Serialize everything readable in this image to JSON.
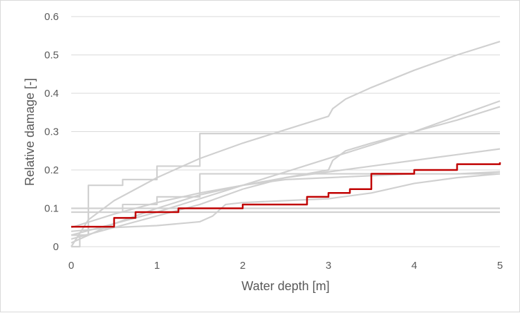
{
  "chart_data": {
    "type": "line",
    "title": "",
    "xlabel": "Water depth [m]",
    "ylabel": "Relative damage [-]",
    "xlim": [
      0,
      5
    ],
    "ylim": [
      0,
      0.6
    ],
    "xticks": [
      "0",
      "1",
      "2",
      "3",
      "4",
      "5"
    ],
    "yticks": [
      "0",
      "0.1",
      "0.2",
      "0.3",
      "0.4",
      "0.5",
      "0.6"
    ],
    "grid": "horizontal",
    "legend": "none",
    "colors": {
      "highlight": "#c00000",
      "background_series": "#d0d0d0",
      "grid": "#d9d9d9",
      "text": "#595959"
    },
    "series": [
      {
        "step": true,
        "x": [
          0,
          0.1,
          0.2,
          0.6,
          1.0,
          1.5,
          5.0
        ],
        "y": [
          0.0,
          0.03,
          0.16,
          0.175,
          0.21,
          0.295,
          0.295
        ]
      },
      {
        "step": true,
        "x": [
          0,
          0.2,
          0.6,
          1.0,
          1.5,
          5.0
        ],
        "y": [
          0.03,
          0.09,
          0.11,
          0.13,
          0.19,
          0.19
        ]
      },
      {
        "x": [
          0,
          0.2,
          0.5,
          1.0,
          1.5,
          2.0,
          2.5,
          3.0,
          3.05,
          3.2,
          3.5,
          4.0,
          4.5,
          5.0
        ],
        "y": [
          0.0,
          0.07,
          0.12,
          0.18,
          0.23,
          0.27,
          0.305,
          0.34,
          0.36,
          0.385,
          0.415,
          0.46,
          0.5,
          0.535
        ]
      },
      {
        "x": [
          0,
          0.5,
          1.0,
          1.5,
          2.0,
          2.5,
          3.0,
          3.05,
          3.2,
          3.5,
          4.0,
          4.5,
          5.0
        ],
        "y": [
          0.02,
          0.05,
          0.08,
          0.11,
          0.15,
          0.18,
          0.2,
          0.225,
          0.25,
          0.27,
          0.3,
          0.33,
          0.365
        ]
      },
      {
        "x": [
          0,
          0.5,
          1.0,
          1.5,
          2.0,
          2.5,
          3.0,
          3.5,
          4.0,
          4.5,
          5.0
        ],
        "y": [
          0.03,
          0.06,
          0.09,
          0.125,
          0.16,
          0.195,
          0.23,
          0.265,
          0.3,
          0.34,
          0.38
        ]
      },
      {
        "x": [
          0,
          0.5,
          1.0,
          1.5,
          2.0,
          2.5,
          3.0,
          3.5,
          4.0,
          4.5,
          5.0
        ],
        "y": [
          0.05,
          0.085,
          0.115,
          0.14,
          0.16,
          0.18,
          0.195,
          0.21,
          0.225,
          0.24,
          0.255
        ]
      },
      {
        "x": [
          0,
          0.5,
          1.0,
          1.5,
          1.65,
          1.8,
          2.0,
          2.5,
          3.0,
          3.5,
          4.0,
          4.5,
          5.0
        ],
        "y": [
          0.04,
          0.05,
          0.055,
          0.065,
          0.08,
          0.11,
          0.115,
          0.12,
          0.125,
          0.14,
          0.165,
          0.18,
          0.19
        ]
      },
      {
        "x": [
          0,
          0.5,
          1.0,
          1.5,
          2.0,
          2.5,
          3.0,
          3.5,
          4.0,
          4.5,
          5.0
        ],
        "y": [
          0.01,
          0.06,
          0.1,
          0.135,
          0.16,
          0.175,
          0.18,
          0.185,
          0.19,
          0.19,
          0.195
        ]
      },
      {
        "x": [
          0,
          5.0
        ],
        "y": [
          0.1,
          0.1
        ]
      },
      {
        "x": [
          0,
          5.0
        ],
        "y": [
          0.09,
          0.09
        ]
      },
      {
        "highlight": true,
        "step": true,
        "x": [
          0,
          0.5,
          0.75,
          1.25,
          1.5,
          2.0,
          2.75,
          3.0,
          3.25,
          3.5,
          4.0,
          4.5,
          5.0
        ],
        "y": [
          0.052,
          0.075,
          0.09,
          0.1,
          0.1,
          0.11,
          0.13,
          0.14,
          0.15,
          0.19,
          0.2,
          0.215,
          0.22
        ]
      }
    ]
  }
}
